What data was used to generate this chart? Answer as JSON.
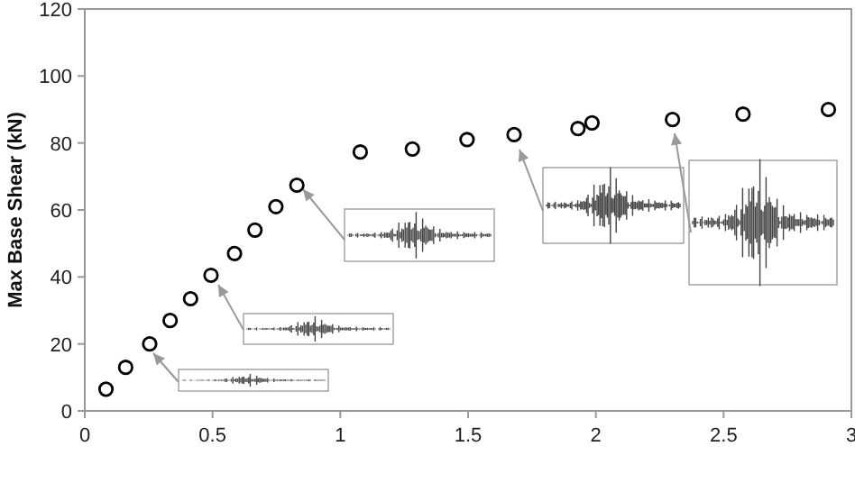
{
  "chart_data": {
    "type": "scatter",
    "ylabel": "Max Base Shear (kN)",
    "marker": "circle",
    "grid": false,
    "x": [
      0.083,
      0.16,
      0.254,
      0.334,
      0.414,
      0.494,
      0.586,
      0.666,
      0.748,
      0.83,
      1.078,
      1.282,
      1.496,
      1.68,
      1.93,
      1.985,
      2.3,
      2.576,
      2.91
    ],
    "series": [
      {
        "color": "#000000",
        "values": [
          6.5,
          13,
          20,
          27,
          33.5,
          40.5,
          47,
          54,
          61,
          67.4,
          77.3,
          78.2,
          81,
          82.5,
          84.3,
          86,
          87,
          88.6,
          90
        ]
      }
    ],
    "xlim": [
      0,
      3
    ],
    "xticks": [
      0,
      0.5,
      1,
      1.5,
      2,
      2.5,
      3
    ],
    "ylim": [
      0,
      120
    ],
    "yticks": [
      0,
      20,
      40,
      60,
      80,
      100,
      120
    ]
  }
}
